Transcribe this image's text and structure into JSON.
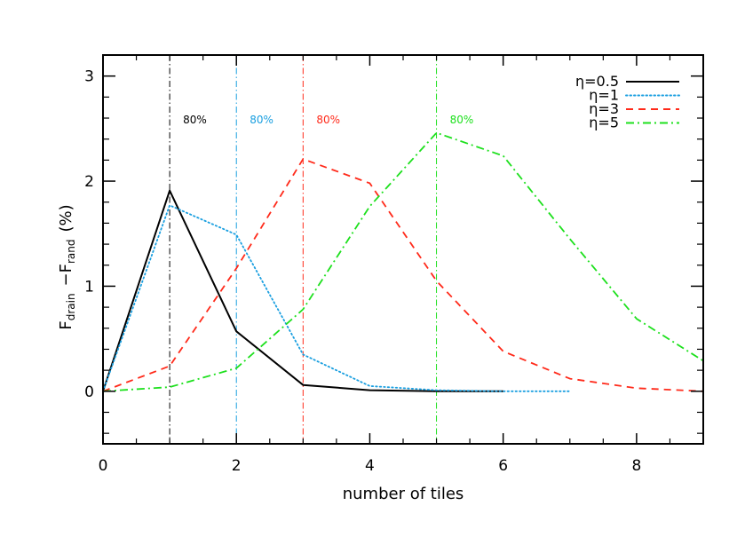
{
  "chart_data": {
    "type": "line",
    "xlabel": "number of tiles",
    "ylabel": {
      "main1": "F",
      "sub1": "drain",
      "main2": "−F",
      "sub2": "rand",
      "unit": "(%)"
    },
    "xlim": [
      0,
      9
    ],
    "ylim": [
      -0.5,
      3.2
    ],
    "x_ticks": [
      0,
      2,
      4,
      6,
      8
    ],
    "y_ticks": [
      0,
      1,
      2,
      3
    ],
    "grid": false,
    "legend_position": "top-right",
    "series": [
      {
        "name": "η=0.5",
        "color": "#000000",
        "dash": "solid",
        "x": [
          0,
          1,
          2,
          3,
          4,
          5,
          6
        ],
        "y": [
          0.0,
          1.91,
          0.57,
          0.06,
          0.01,
          0.0,
          0.0
        ]
      },
      {
        "name": "η=1",
        "color": "#1a9fe0",
        "dash": "dotted",
        "x": [
          0,
          1,
          2,
          3,
          4,
          5,
          6,
          7
        ],
        "y": [
          0.0,
          1.77,
          1.49,
          0.35,
          0.05,
          0.01,
          0.0,
          0.0
        ]
      },
      {
        "name": "η=3",
        "color": "#ff2a1a",
        "dash": "dashed",
        "x": [
          0,
          1,
          2,
          3,
          4,
          5,
          6,
          7,
          8,
          9
        ],
        "y": [
          0.0,
          0.24,
          1.17,
          2.21,
          1.98,
          1.05,
          0.38,
          0.12,
          0.03,
          0.0
        ]
      },
      {
        "name": "η=5",
        "color": "#1de01d",
        "dash": "dashdot",
        "x": [
          0,
          1,
          2,
          3,
          4,
          5,
          6,
          7,
          8,
          9
        ],
        "y": [
          0.0,
          0.04,
          0.22,
          0.78,
          1.76,
          2.46,
          2.24,
          1.45,
          0.69,
          0.29
        ]
      }
    ],
    "vlines": [
      {
        "x": 1,
        "color": "#000000",
        "label": "80%",
        "label_x": 1.2
      },
      {
        "x": 2,
        "color": "#1a9fe0",
        "label": "80%",
        "label_x": 2.2
      },
      {
        "x": 3,
        "color": "#ff2a1a",
        "label": "80%",
        "label_x": 3.2
      },
      {
        "x": 5,
        "color": "#1de01d",
        "label": "80%",
        "label_x": 5.2
      }
    ],
    "vline_label_y": 2.55
  }
}
